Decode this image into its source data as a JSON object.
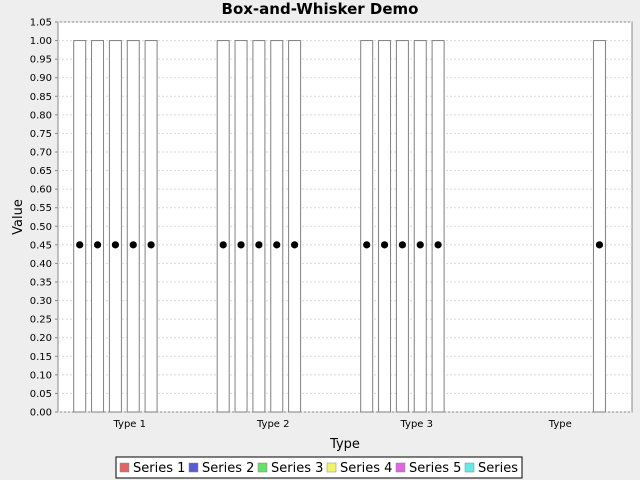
{
  "chart_data": {
    "type": "box",
    "title": "Box-and-Whisker Demo",
    "xlabel": "Type",
    "ylabel": "Value",
    "ylim": [
      0,
      1.05
    ],
    "ytick_step": 0.05,
    "grid": true,
    "legend_position": "bottom",
    "categories": [
      "Type 1",
      "Type 2",
      "Type 3",
      "Type"
    ],
    "series": [
      {
        "name": "Series 1",
        "color": "#e06666",
        "boxes": [
          {
            "low": 0,
            "high": 1,
            "mean": 0.45
          },
          {
            "low": 0,
            "high": 1,
            "mean": 0.45
          },
          {
            "low": 0,
            "high": 1,
            "mean": 0.45
          },
          null
        ]
      },
      {
        "name": "Series 2",
        "color": "#5a5ad6",
        "boxes": [
          {
            "low": 0,
            "high": 1,
            "mean": 0.45
          },
          {
            "low": 0,
            "high": 1,
            "mean": 0.45
          },
          {
            "low": 0,
            "high": 1,
            "mean": 0.45
          },
          null
        ]
      },
      {
        "name": "Series 3",
        "color": "#66e066",
        "boxes": [
          {
            "low": 0,
            "high": 1,
            "mean": 0.45
          },
          {
            "low": 0,
            "high": 1,
            "mean": 0.45
          },
          {
            "low": 0,
            "high": 1,
            "mean": 0.45
          },
          null
        ]
      },
      {
        "name": "Series 4",
        "color": "#f2f266",
        "boxes": [
          {
            "low": 0,
            "high": 1,
            "mean": 0.45
          },
          {
            "low": 0,
            "high": 1,
            "mean": 0.45
          },
          {
            "low": 0,
            "high": 1,
            "mean": 0.45
          },
          null
        ]
      },
      {
        "name": "Series 5",
        "color": "#e066e0",
        "boxes": [
          {
            "low": 0,
            "high": 1,
            "mean": 0.45
          },
          {
            "low": 0,
            "high": 1,
            "mean": 0.45
          },
          {
            "low": 0,
            "high": 1,
            "mean": 0.45
          },
          null
        ]
      },
      {
        "name": "Series",
        "color": "#66e8e8",
        "boxes": [
          null,
          null,
          null,
          {
            "low": 0,
            "high": 1,
            "mean": 0.45
          }
        ]
      }
    ]
  }
}
